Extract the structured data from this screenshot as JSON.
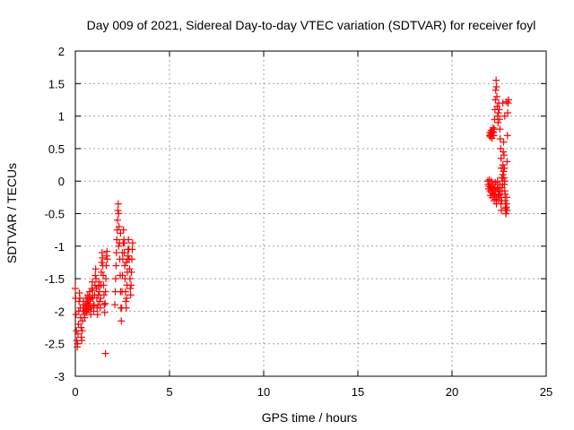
{
  "chart_data": {
    "type": "scatter",
    "title": "Day 009 of 2021, Sidereal Day-to-day VTEC variation (SDTVAR) for receiver foyl",
    "xlabel": "GPS time / hours",
    "ylabel": "SDTVAR / TECUs",
    "xlim": [
      0,
      25
    ],
    "ylim": [
      -3,
      2
    ],
    "xticks": [
      "0",
      "5",
      "10",
      "15",
      "20",
      "25"
    ],
    "yticks": [
      "-3",
      "-2.5",
      "-2",
      "-1.5",
      "-1",
      "-0.5",
      "0",
      "0.5",
      "1",
      "1.5",
      "2"
    ],
    "grid": true,
    "marker": "+",
    "color": "#ff0000",
    "series": [
      {
        "name": "SDTVAR",
        "points": [
          [
            0.0,
            -1.65
          ],
          [
            0.02,
            -1.8
          ],
          [
            0.04,
            -2.05
          ],
          [
            0.06,
            -2.3
          ],
          [
            0.08,
            -2.45
          ],
          [
            0.1,
            -2.55
          ],
          [
            0.12,
            -2.5
          ],
          [
            0.14,
            -2.35
          ],
          [
            0.16,
            -2.2
          ],
          [
            0.18,
            -2.0
          ],
          [
            0.2,
            -1.85
          ],
          [
            0.22,
            -1.72
          ],
          [
            0.24,
            -1.8
          ],
          [
            0.26,
            -1.95
          ],
          [
            0.28,
            -2.1
          ],
          [
            0.3,
            -2.25
          ],
          [
            0.32,
            -2.4
          ],
          [
            0.34,
            -2.45
          ],
          [
            0.36,
            -2.3
          ],
          [
            0.38,
            -2.15
          ],
          [
            0.4,
            -2.0
          ],
          [
            0.42,
            -1.9
          ],
          [
            0.44,
            -1.85
          ],
          [
            0.46,
            -1.95
          ],
          [
            0.48,
            -2.05
          ],
          [
            0.5,
            -2.1
          ],
          [
            0.52,
            -2.0
          ],
          [
            0.54,
            -1.9
          ],
          [
            0.56,
            -1.8
          ],
          [
            0.58,
            -1.92
          ],
          [
            0.6,
            -2.02
          ],
          [
            0.62,
            -1.98
          ],
          [
            0.64,
            -1.85
          ],
          [
            0.66,
            -1.75
          ],
          [
            0.68,
            -1.88
          ],
          [
            0.7,
            -1.97
          ],
          [
            0.72,
            -1.9
          ],
          [
            0.74,
            -1.78
          ],
          [
            0.76,
            -1.7
          ],
          [
            0.78,
            -1.82
          ],
          [
            0.8,
            -1.95
          ],
          [
            0.82,
            -2.05
          ],
          [
            0.84,
            -1.95
          ],
          [
            0.86,
            -1.8
          ],
          [
            0.88,
            -1.65
          ],
          [
            0.9,
            -1.55
          ],
          [
            0.92,
            -1.68
          ],
          [
            0.94,
            -1.8
          ],
          [
            0.96,
            -1.92
          ],
          [
            0.98,
            -2.0
          ],
          [
            1.0,
            -1.9
          ],
          [
            1.02,
            -1.75
          ],
          [
            1.04,
            -1.6
          ],
          [
            1.06,
            -1.45
          ],
          [
            1.08,
            -1.35
          ],
          [
            1.1,
            -1.5
          ],
          [
            1.12,
            -1.65
          ],
          [
            1.14,
            -1.8
          ],
          [
            1.16,
            -1.95
          ],
          [
            1.18,
            -2.05
          ],
          [
            1.2,
            -1.9
          ],
          [
            1.22,
            -1.75
          ],
          [
            1.24,
            -1.62
          ],
          [
            1.26,
            -1.55
          ],
          [
            1.28,
            -1.7
          ],
          [
            1.3,
            -1.85
          ],
          [
            1.32,
            -1.95
          ],
          [
            1.34,
            -1.8
          ],
          [
            1.36,
            -1.6
          ],
          [
            1.38,
            -1.4
          ],
          [
            1.4,
            -1.25
          ],
          [
            1.42,
            -1.1
          ],
          [
            1.44,
            -1.18
          ],
          [
            1.46,
            -1.3
          ],
          [
            1.48,
            -1.45
          ],
          [
            1.5,
            -1.6
          ],
          [
            1.52,
            -1.75
          ],
          [
            1.54,
            -1.9
          ],
          [
            1.56,
            -2.02
          ],
          [
            1.58,
            -1.88
          ],
          [
            1.6,
            -1.7
          ],
          [
            1.62,
            -1.5
          ],
          [
            1.64,
            -1.3
          ],
          [
            1.66,
            -1.15
          ],
          [
            1.68,
            -1.08
          ],
          [
            1.7,
            -1.2
          ],
          [
            1.6,
            -2.65
          ],
          [
            2.1,
            -1.9
          ],
          [
            2.12,
            -1.7
          ],
          [
            2.14,
            -1.5
          ],
          [
            2.16,
            -1.3
          ],
          [
            2.18,
            -1.1
          ],
          [
            2.2,
            -0.9
          ],
          [
            2.22,
            -0.75
          ],
          [
            2.24,
            -0.6
          ],
          [
            2.26,
            -0.45
          ],
          [
            2.28,
            -0.35
          ],
          [
            2.3,
            -0.5
          ],
          [
            2.32,
            -0.7
          ],
          [
            2.34,
            -0.95
          ],
          [
            2.36,
            -1.2
          ],
          [
            2.38,
            -1.45
          ],
          [
            2.4,
            -1.7
          ],
          [
            2.42,
            -1.95
          ],
          [
            2.44,
            -2.15
          ],
          [
            2.46,
            -1.95
          ],
          [
            2.48,
            -1.7
          ],
          [
            2.5,
            -1.45
          ],
          [
            2.52,
            -1.2
          ],
          [
            2.54,
            -0.95
          ],
          [
            2.56,
            -0.75
          ],
          [
            2.58,
            -0.9
          ],
          [
            2.6,
            -1.1
          ],
          [
            2.62,
            -1.3
          ],
          [
            2.64,
            -1.5
          ],
          [
            2.66,
            -1.7
          ],
          [
            2.68,
            -1.85
          ],
          [
            2.7,
            -1.95
          ],
          [
            2.72,
            -1.8
          ],
          [
            2.74,
            -1.6
          ],
          [
            2.76,
            -1.4
          ],
          [
            2.78,
            -1.2
          ],
          [
            2.8,
            -1.05
          ],
          [
            2.82,
            -0.9
          ],
          [
            2.84,
            -1.05
          ],
          [
            2.86,
            -1.2
          ],
          [
            2.88,
            -1.35
          ],
          [
            2.9,
            -1.5
          ],
          [
            2.92,
            -1.65
          ],
          [
            2.94,
            -1.75
          ],
          [
            2.96,
            -1.6
          ],
          [
            2.98,
            -1.4
          ],
          [
            3.0,
            -1.2
          ],
          [
            3.02,
            -1.05
          ],
          [
            3.04,
            -0.95
          ],
          [
            2.3,
            -1.0
          ],
          [
            2.4,
            -0.8
          ],
          [
            2.5,
            -1.1
          ],
          [
            2.6,
            -0.95
          ],
          [
            2.7,
            -1.25
          ],
          [
            2.8,
            -1.15
          ],
          [
            22.0,
            0.7
          ],
          [
            22.02,
            0.75
          ],
          [
            22.04,
            0.68
          ],
          [
            22.06,
            0.72
          ],
          [
            22.08,
            0.78
          ],
          [
            22.1,
            0.74
          ],
          [
            22.12,
            0.66
          ],
          [
            22.14,
            0.7
          ],
          [
            22.16,
            0.76
          ],
          [
            22.18,
            0.82
          ],
          [
            22.2,
            0.75
          ],
          [
            22.22,
            0.7
          ],
          [
            22.24,
            0.8
          ],
          [
            22.26,
            0.95
          ],
          [
            22.28,
            1.1
          ],
          [
            22.3,
            1.25
          ],
          [
            22.32,
            1.4
          ],
          [
            22.34,
            1.55
          ],
          [
            22.36,
            1.45
          ],
          [
            22.38,
            1.3
          ],
          [
            22.4,
            1.15
          ],
          [
            22.42,
            1.0
          ],
          [
            22.44,
            0.9
          ],
          [
            22.46,
            1.05
          ],
          [
            22.48,
            1.2
          ],
          [
            22.5,
            1.1
          ],
          [
            22.52,
            0.95
          ],
          [
            22.54,
            0.8
          ],
          [
            22.56,
            0.65
          ],
          [
            22.58,
            0.5
          ],
          [
            22.6,
            0.35
          ],
          [
            22.62,
            0.2
          ],
          [
            22.64,
            0.05
          ],
          [
            22.66,
            -0.1
          ],
          [
            22.68,
            0.05
          ],
          [
            22.7,
            0.25
          ],
          [
            22.72,
            0.45
          ],
          [
            22.74,
            0.6
          ],
          [
            22.76,
            0.4
          ],
          [
            22.78,
            0.2
          ],
          [
            22.8,
            0.0
          ],
          [
            22.82,
            -0.2
          ],
          [
            22.84,
            -0.35
          ],
          [
            22.86,
            -0.5
          ],
          [
            22.88,
            -0.4
          ],
          [
            22.9,
            -0.25
          ],
          [
            22.92,
            0.3
          ],
          [
            22.94,
            0.7
          ],
          [
            22.96,
            1.05
          ],
          [
            22.98,
            1.2
          ],
          [
            23.0,
            1.25
          ],
          [
            22.9,
            1.22
          ],
          [
            22.8,
            1.0
          ],
          [
            22.7,
            1.2
          ],
          [
            21.9,
            0.0
          ],
          [
            21.92,
            -0.05
          ],
          [
            21.94,
            -0.12
          ],
          [
            21.96,
            -0.08
          ],
          [
            21.98,
            0.02
          ],
          [
            22.0,
            -0.05
          ],
          [
            22.02,
            -0.15
          ],
          [
            22.04,
            -0.22
          ],
          [
            22.06,
            -0.1
          ],
          [
            22.08,
            0.0
          ],
          [
            22.1,
            -0.08
          ],
          [
            22.12,
            -0.18
          ],
          [
            22.14,
            -0.25
          ],
          [
            22.16,
            -0.15
          ],
          [
            22.18,
            -0.05
          ],
          [
            22.2,
            -0.12
          ],
          [
            22.22,
            -0.2
          ],
          [
            22.24,
            -0.3
          ],
          [
            22.26,
            -0.22
          ],
          [
            22.28,
            -0.1
          ],
          [
            22.3,
            -0.02
          ],
          [
            22.32,
            -0.15
          ],
          [
            22.34,
            -0.28
          ],
          [
            22.36,
            -0.35
          ],
          [
            22.38,
            -0.25
          ],
          [
            22.4,
            -0.12
          ],
          [
            22.42,
            0.0
          ],
          [
            22.44,
            -0.1
          ],
          [
            22.46,
            -0.2
          ],
          [
            22.48,
            -0.3
          ],
          [
            22.5,
            -0.22
          ],
          [
            22.52,
            -0.15
          ],
          [
            22.54,
            -0.05
          ],
          [
            22.56,
            -0.15
          ],
          [
            22.58,
            -0.25
          ],
          [
            22.6,
            -0.35
          ],
          [
            22.62,
            -0.45
          ],
          [
            22.64,
            -0.3
          ],
          [
            22.66,
            -0.15
          ],
          [
            22.68,
            -0.05
          ],
          [
            22.7,
            0.1
          ],
          [
            22.72,
            0.2
          ],
          [
            22.74,
            0.15
          ],
          [
            22.76,
            0.05
          ],
          [
            22.78,
            -0.05
          ],
          [
            22.8,
            -0.15
          ],
          [
            22.82,
            -0.3
          ],
          [
            22.84,
            -0.42
          ],
          [
            22.86,
            -0.5
          ],
          [
            22.88,
            -0.45
          ],
          [
            22.9,
            -0.35
          ],
          [
            22.92,
            -0.45
          ]
        ]
      }
    ]
  }
}
